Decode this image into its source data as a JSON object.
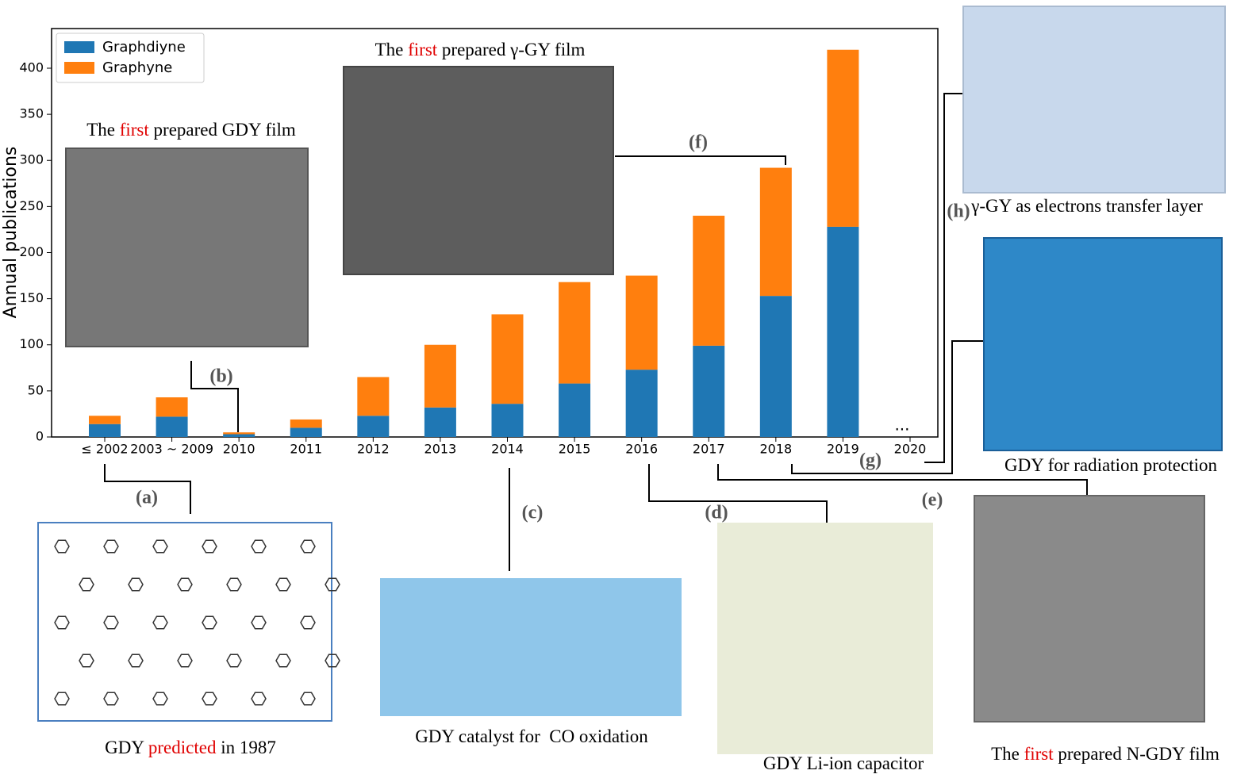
{
  "chart_data": {
    "type": "bar",
    "stacked": true,
    "ylabel": "Annual publications",
    "categories": [
      "≤ 2002",
      "2003 ~ 2009",
      "2010",
      "2011",
      "2012",
      "2013",
      "2014",
      "2015",
      "2016",
      "2017",
      "2018",
      "2019",
      "2020"
    ],
    "series": [
      {
        "name": "Graphdiyne",
        "color": "#1f77b4",
        "values": [
          14,
          22,
          3,
          10,
          23,
          32,
          36,
          58,
          73,
          99,
          153,
          228,
          null
        ]
      },
      {
        "name": "Graphyne",
        "color": "#ff7f0e",
        "values": [
          9,
          21,
          2,
          9,
          42,
          68,
          97,
          110,
          102,
          141,
          139,
          192,
          null
        ]
      }
    ],
    "ylim": [
      0,
      443
    ],
    "yticks": [
      0,
      50,
      100,
      150,
      200,
      250,
      300,
      350,
      400
    ],
    "legend": "upper left",
    "annotation": "...",
    "panels": [
      {
        "label": "(a)",
        "caption": [
          {
            "text": "GDY "
          },
          {
            "text": "predicted",
            "color": "#e00000"
          },
          {
            "text": " in 1987"
          }
        ]
      },
      {
        "label": "(b)",
        "caption": [
          {
            "text": "The "
          },
          {
            "text": "first",
            "color": "#e00000"
          },
          {
            "text": " prepared GDY film"
          }
        ]
      },
      {
        "label": "(c)",
        "caption": [
          {
            "text": "GDY catalyst for  CO oxidation"
          }
        ]
      },
      {
        "label": "(d)",
        "caption": [
          {
            "text": "GDY Li-ion capacitor"
          }
        ]
      },
      {
        "label": "(e)",
        "caption": [
          {
            "text": "The "
          },
          {
            "text": "first",
            "color": "#e00000"
          },
          {
            "text": " prepared N-GDY film"
          }
        ]
      },
      {
        "label": "(f)",
        "caption": [
          {
            "text": "The "
          },
          {
            "text": "first",
            "color": "#e00000"
          },
          {
            "text": " prepared γ-GY film"
          }
        ]
      },
      {
        "label": "(g)",
        "caption": [
          {
            "text": "GDY for radiation protection"
          }
        ]
      },
      {
        "label": "(h)",
        "caption": [
          {
            "text": "γ-GY as electrons transfer layer"
          }
        ]
      }
    ]
  }
}
